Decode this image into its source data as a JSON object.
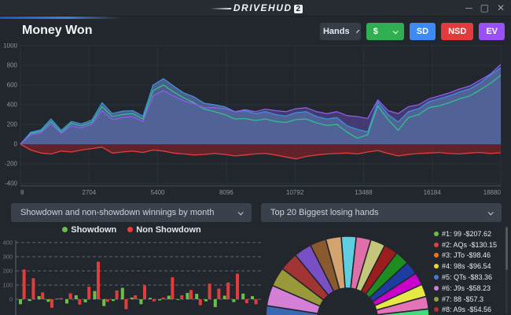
{
  "window": {
    "logo": "DRIVEHUD",
    "logo_badge": "2"
  },
  "header": {
    "title": "Money Won",
    "hands_label": "Hands",
    "currency_label": "$",
    "sd_label": "SD",
    "nsd_label": "NSD",
    "ev_label": "EV",
    "colors": {
      "sd": "#3d8af7",
      "nsd": "#e23b3b",
      "ev": "#9b50f5",
      "currency": "#2fae52",
      "accent": "#3f7fe0"
    }
  },
  "selectors": {
    "left": "Showdown and non-showdown winnings by month",
    "right": "Top 20 Biggest losing hands"
  },
  "chart_data": [
    {
      "type": "line",
      "title": "Money Won",
      "x_ticks": [
        8,
        2704,
        5400,
        8096,
        10792,
        13488,
        16184,
        18880
      ],
      "y_ticks": [
        1000,
        800,
        600,
        400,
        200,
        0,
        -200,
        -400
      ],
      "xlim": [
        8,
        18880
      ],
      "ylim": [
        -400,
        1000
      ],
      "grid": true,
      "x": [
        8,
        410,
        810,
        1210,
        1610,
        2010,
        2410,
        2815,
        3215,
        3615,
        4020,
        4420,
        4820,
        5220,
        5625,
        6025,
        6425,
        6830,
        7230,
        7630,
        8030,
        8435,
        8835,
        9235,
        9635,
        10040,
        10440,
        10840,
        11240,
        11645,
        12045,
        12445,
        12845,
        13245,
        13650,
        14050,
        14450,
        14850,
        15250,
        15655,
        16055,
        16455,
        16855,
        17255,
        17660,
        18060,
        18460,
        18880
      ],
      "series": [
        {
          "name": "ev",
          "color": "#8e5cf0",
          "fill": "rgba(110,82,195,0.45)",
          "values": [
            0,
            95,
            115,
            205,
            110,
            185,
            165,
            200,
            340,
            250,
            270,
            280,
            230,
            490,
            545,
            490,
            440,
            410,
            370,
            370,
            360,
            330,
            350,
            330,
            355,
            340,
            330,
            360,
            370,
            330,
            310,
            330,
            290,
            280,
            260,
            450,
            340,
            310,
            380,
            400,
            460,
            490,
            520,
            560,
            590,
            650,
            710,
            810
          ]
        },
        {
          "name": "total-won",
          "color": "#3f8fd8",
          "fill": "rgba(84,106,156,0.85)",
          "values": [
            0,
            120,
            145,
            255,
            140,
            230,
            205,
            245,
            420,
            310,
            335,
            340,
            285,
            600,
            665,
            590,
            520,
            480,
            415,
            400,
            380,
            330,
            340,
            310,
            330,
            300,
            285,
            320,
            330,
            280,
            255,
            270,
            185,
            150,
            125,
            430,
            300,
            225,
            330,
            360,
            430,
            460,
            490,
            530,
            560,
            620,
            700,
            775
          ]
        },
        {
          "name": "showdown",
          "color": "#2fbf8f",
          "fill": null,
          "values": [
            0,
            110,
            130,
            230,
            120,
            210,
            185,
            220,
            380,
            280,
            300,
            310,
            255,
            545,
            600,
            530,
            470,
            420,
            355,
            330,
            300,
            255,
            260,
            240,
            255,
            230,
            220,
            250,
            255,
            215,
            190,
            200,
            120,
            60,
            95,
            390,
            250,
            140,
            270,
            300,
            370,
            390,
            420,
            460,
            490,
            550,
            615,
            700
          ]
        },
        {
          "name": "non-showdown",
          "color": "#e23d3d",
          "fill": "rgba(140,32,38,0.6)",
          "values": [
            0,
            -60,
            -90,
            -100,
            -70,
            -80,
            -60,
            -45,
            -30,
            -90,
            -80,
            -70,
            -85,
            -60,
            -70,
            -90,
            -100,
            -110,
            -105,
            -95,
            -105,
            -120,
            -110,
            -100,
            -95,
            -110,
            -130,
            -150,
            -125,
            -110,
            -100,
            -95,
            -90,
            -100,
            -80,
            -65,
            -95,
            -120,
            -105,
            -95,
            -90,
            -85,
            -95,
            -100,
            -90,
            -85,
            -95,
            -88
          ]
        }
      ]
    },
    {
      "type": "bar",
      "title": "Showdown and non-showdown winnings by month",
      "y_ticks": [
        400,
        300,
        200,
        100,
        0
      ],
      "grid": "dashed",
      "legend": [
        {
          "label": "Showdown",
          "color": "#6abf45"
        },
        {
          "label": "Non Showdown",
          "color": "#e23d3d"
        }
      ],
      "series": [
        {
          "name": "Showdown",
          "color": "#6abf45",
          "values": [
            -35,
            -12,
            22,
            -18,
            4,
            -30,
            28,
            -22,
            58,
            -48,
            -12,
            80,
            12,
            -35,
            10,
            -8,
            25,
            -5,
            45,
            38,
            -15,
            -55,
            25,
            -20,
            40,
            22
          ]
        },
        {
          "name": "Non Showdown",
          "color": "#e23d3c",
          "values": [
            210,
            148,
            48,
            -60,
            8,
            42,
            -38,
            88,
            265,
            -18,
            62,
            -70,
            28,
            98,
            -15,
            12,
            155,
            28,
            65,
            -42,
            110,
            75,
            118,
            180,
            -28,
            -35
          ]
        }
      ]
    },
    {
      "type": "pie",
      "title": "Top 20 Biggest losing hands",
      "legend": [
        {
          "label": "#1: 99 -$207.62",
          "color": "#6abf40"
        },
        {
          "label": "#2: AQs -$130.15",
          "color": "#e04040"
        },
        {
          "label": "#3: JTo -$98.46",
          "color": "#e87820"
        },
        {
          "label": "#4: 98s -$96.54",
          "color": "#e8d832"
        },
        {
          "label": "#5: QTs -$83.36",
          "color": "#4a78d0"
        },
        {
          "label": "#6: J9s -$58.23",
          "color": "#cf7fd8"
        },
        {
          "label": "#7: 88 -$57.3",
          "color": "#9aa03a"
        },
        {
          "label": "#8: A9s -$54.56",
          "color": "#b03030"
        }
      ],
      "slices": [
        {
          "color": "#3a68b2",
          "weight": 15
        },
        {
          "color": "#d67fd6",
          "weight": 14
        },
        {
          "color": "#99993a",
          "weight": 13
        },
        {
          "color": "#a33434",
          "weight": 12.5
        },
        {
          "color": "#7a4ec4",
          "weight": 12
        },
        {
          "color": "#8a5a2e",
          "weight": 11
        },
        {
          "color": "#d4a36e",
          "weight": 10.5
        },
        {
          "color": "#5ecfe0",
          "weight": 10
        },
        {
          "color": "#df6fa8",
          "weight": 10
        },
        {
          "color": "#c6c67a",
          "weight": 10
        },
        {
          "color": "#9c1d1d",
          "weight": 9.5
        },
        {
          "color": "#1e8c1e",
          "weight": 9.5
        },
        {
          "color": "#1e3da0",
          "weight": 9
        },
        {
          "color": "#cc00cc",
          "weight": 8.5
        },
        {
          "color": "#e8e845",
          "weight": 8.5
        },
        {
          "color": "#e473b8",
          "weight": 8.5
        },
        {
          "color": "#41dc78",
          "weight": 9
        }
      ]
    }
  ]
}
